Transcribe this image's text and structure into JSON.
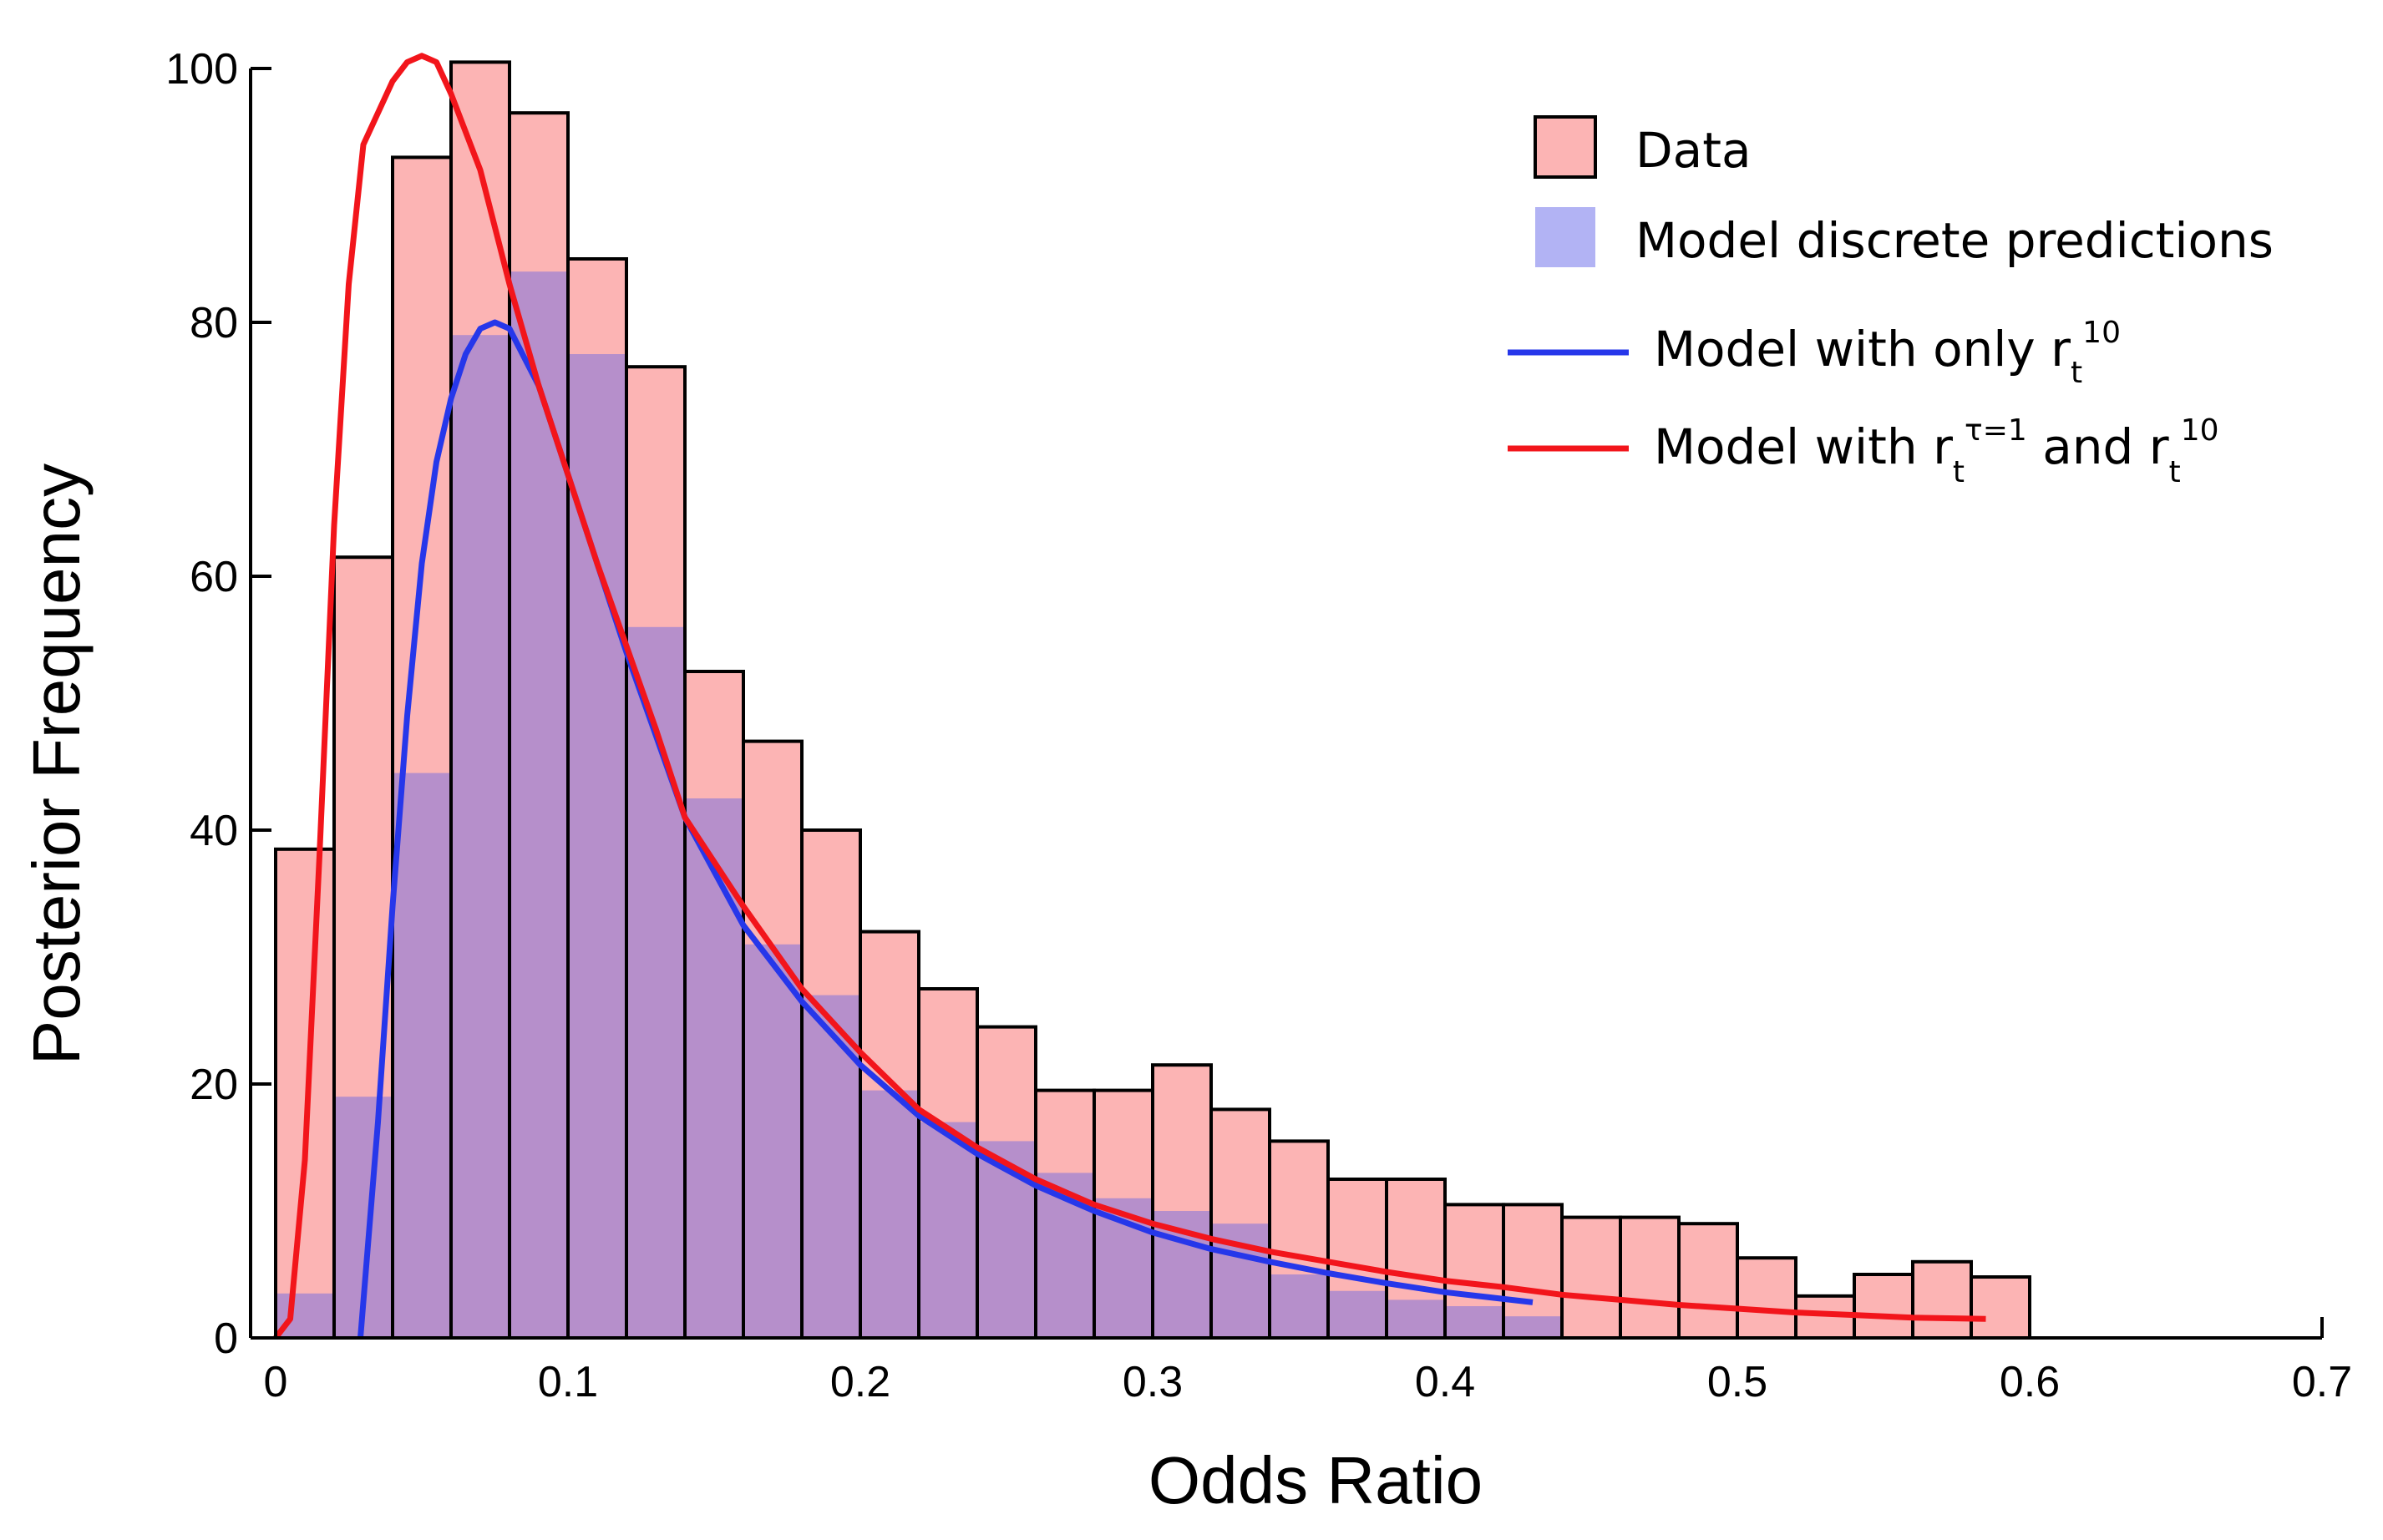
{
  "chart_data": {
    "type": "bar",
    "xlabel": "Odds Ratio",
    "ylabel": "Posterior Frequency",
    "xlim": [
      0,
      0.7
    ],
    "ylim": [
      0,
      100
    ],
    "x_ticks": [
      "0",
      "0.1",
      "0.2",
      "0.3",
      "0.4",
      "0.5",
      "0.6",
      "0.7"
    ],
    "y_ticks": [
      "0",
      "20",
      "40",
      "60",
      "80",
      "100"
    ],
    "bin_width": 0.02,
    "grid": false,
    "legend_position": "top-right",
    "legend": {
      "data": "Data",
      "model_discrete": "Model discrete predictions",
      "blue_prefix": "Model with only r",
      "blue_sub": "t",
      "blue_sup": "10",
      "red_prefix": "Model with r",
      "red_sub1": "t",
      "red_sup1": "τ=1",
      "red_mid": " and r",
      "red_sub2": "t",
      "red_sup2": "10"
    },
    "colors": {
      "data_fill": "#fcb4b4",
      "model_fill": "#b2b3f4",
      "overlap_fill": "#b68fcb",
      "bar_edge": "#000000",
      "blue_line": "#2637ea",
      "red_line": "#f2151b"
    },
    "series": [
      {
        "name": "Data",
        "bin_starts": [
          0,
          0.02,
          0.04,
          0.06,
          0.08,
          0.1,
          0.12,
          0.14,
          0.16,
          0.18,
          0.2,
          0.22,
          0.24,
          0.26,
          0.28,
          0.3,
          0.32,
          0.34,
          0.36,
          0.38,
          0.4,
          0.42,
          0.44,
          0.46,
          0.48,
          0.5,
          0.52,
          0.54,
          0.56,
          0.58
        ],
        "values": [
          38.5,
          61.5,
          93,
          100.5,
          96.5,
          85,
          76.5,
          52.5,
          47,
          40,
          32,
          27.5,
          24.5,
          19.5,
          19.5,
          21.5,
          18,
          15.5,
          12.5,
          12.5,
          10.5,
          10.5,
          9.5,
          9.5,
          9,
          6.3,
          3.3,
          5,
          6,
          4.8
        ]
      },
      {
        "name": "Model discrete predictions",
        "bin_starts": [
          0,
          0.02,
          0.04,
          0.06,
          0.08,
          0.1,
          0.12,
          0.14,
          0.16,
          0.18,
          0.2,
          0.22,
          0.24,
          0.26,
          0.28,
          0.3,
          0.32,
          0.34,
          0.36,
          0.38,
          0.4,
          0.42
        ],
        "values": [
          3.5,
          19,
          44.5,
          79,
          84,
          77.5,
          56,
          42.5,
          31,
          27,
          19.5,
          17,
          15.5,
          13,
          11,
          10,
          9,
          5,
          3.7,
          3,
          2.5,
          1.7
        ]
      },
      {
        "name": "Model with only r_t^10",
        "x": [
          0.029,
          0.035,
          0.04,
          0.045,
          0.05,
          0.055,
          0.06,
          0.065,
          0.07,
          0.075,
          0.08,
          0.09,
          0.1,
          0.11,
          0.12,
          0.13,
          0.14,
          0.16,
          0.18,
          0.2,
          0.22,
          0.24,
          0.26,
          0.28,
          0.3,
          0.32,
          0.34,
          0.36,
          0.38,
          0.4,
          0.43
        ],
        "y": [
          0,
          17,
          34,
          49,
          61,
          69,
          74,
          77.5,
          79.5,
          80,
          79.5,
          75,
          68,
          61,
          54,
          47.5,
          41,
          32.5,
          26.5,
          21.5,
          17.5,
          14.5,
          12,
          10,
          8.3,
          7,
          6,
          5.1,
          4.3,
          3.6,
          2.8
        ]
      },
      {
        "name": "Model with r_t^τ=1 and r_t^10",
        "x": [
          0,
          0.005,
          0.01,
          0.015,
          0.02,
          0.025,
          0.03,
          0.035,
          0.04,
          0.045,
          0.05,
          0.055,
          0.06,
          0.07,
          0.08,
          0.09,
          0.1,
          0.11,
          0.12,
          0.13,
          0.14,
          0.16,
          0.18,
          0.2,
          0.22,
          0.24,
          0.26,
          0.28,
          0.3,
          0.32,
          0.34,
          0.36,
          0.38,
          0.4,
          0.42,
          0.44,
          0.46,
          0.48,
          0.5,
          0.52,
          0.54,
          0.56,
          0.585
        ],
        "y": [
          0,
          1.5,
          14,
          38,
          64,
          83,
          94,
          96.5,
          99,
          100.5,
          101,
          100.5,
          98,
          92,
          83,
          75,
          68,
          61,
          54.5,
          48,
          41,
          34,
          27.5,
          22.5,
          18,
          15,
          12.5,
          10.5,
          9,
          7.8,
          6.8,
          6,
          5.2,
          4.5,
          4,
          3.4,
          3,
          2.6,
          2.3,
          2,
          1.8,
          1.6,
          1.5
        ]
      }
    ]
  }
}
